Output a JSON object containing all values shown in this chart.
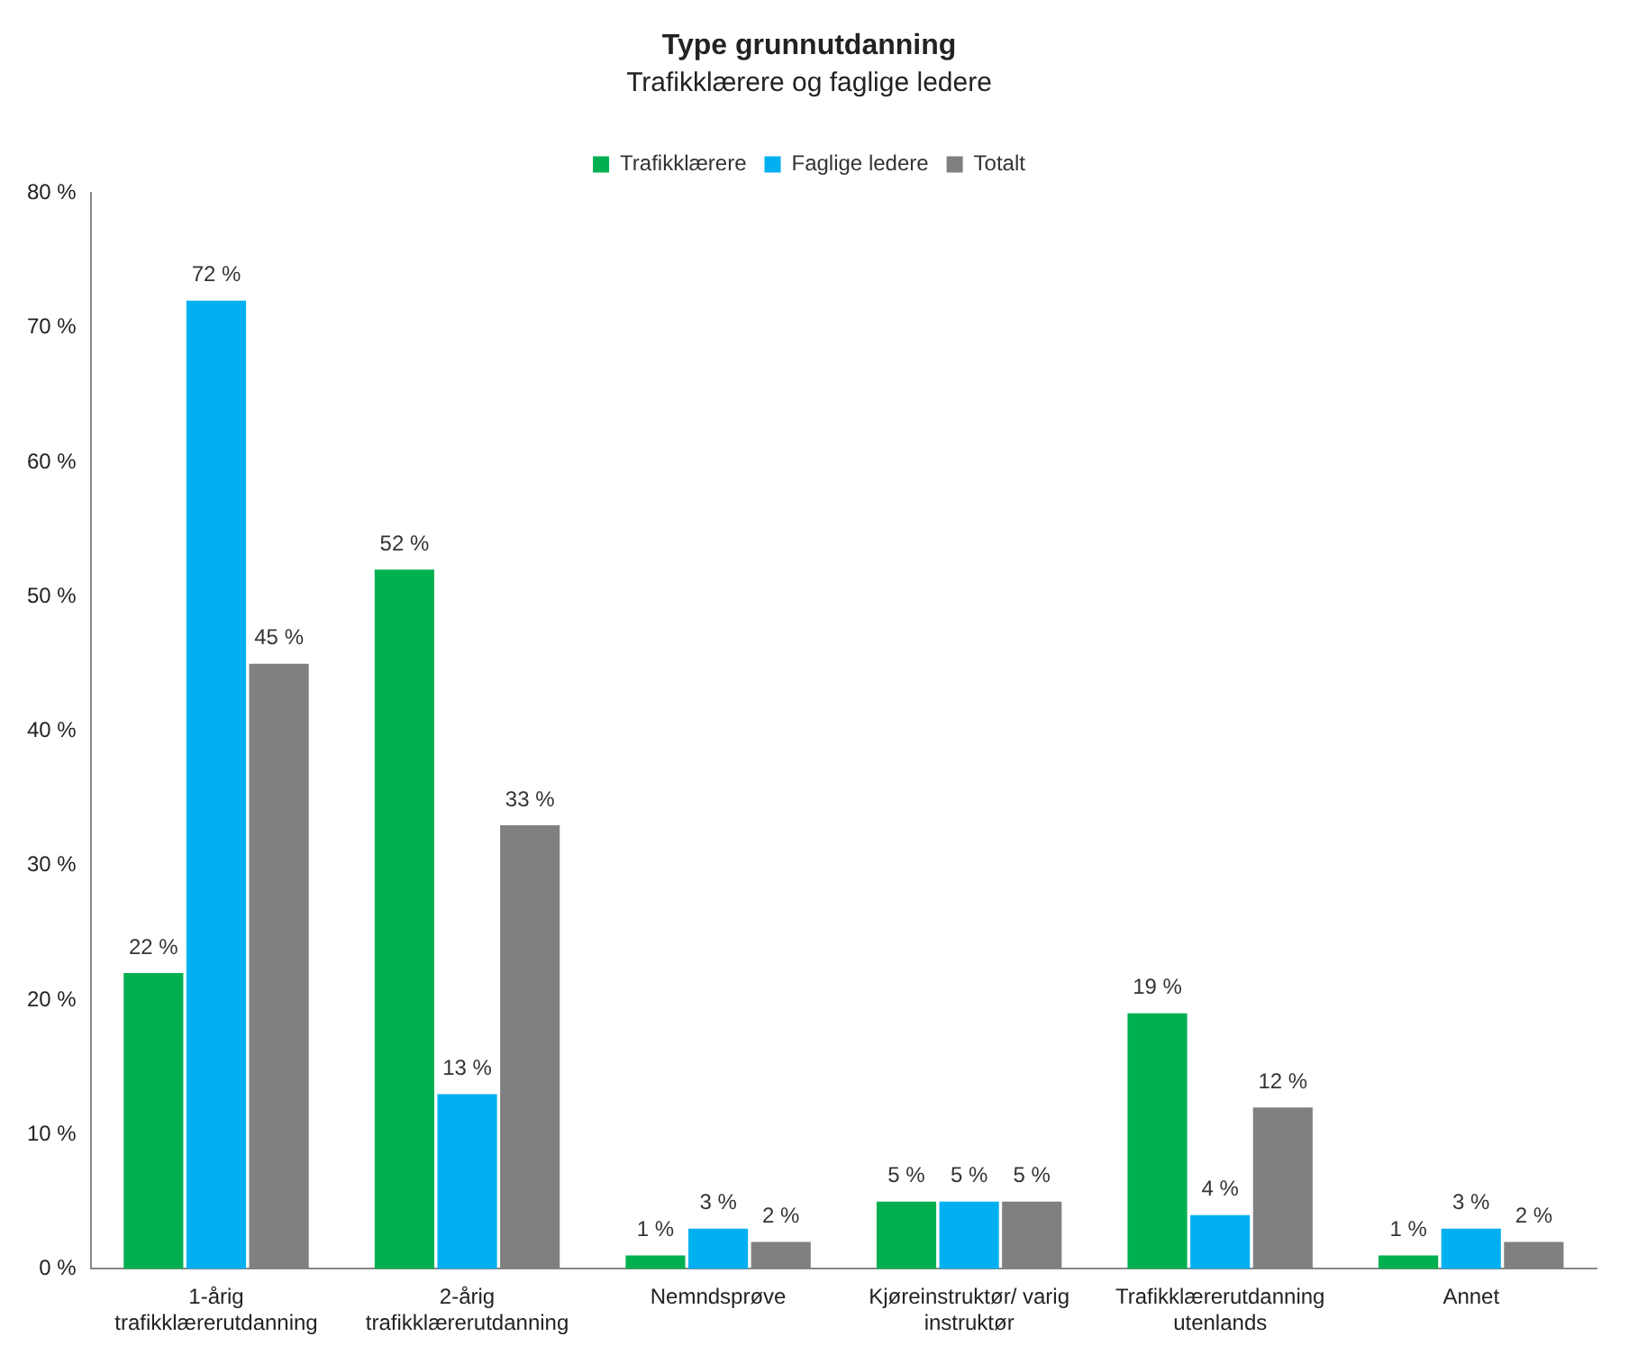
{
  "chart_data": {
    "type": "bar",
    "title": "Type grunnutdanning",
    "subtitle": "Trafikklærere og faglige ledere",
    "categories": [
      "1-årig trafikklærerutdanning",
      "2-årig trafikklærerutdanning",
      "Nemndsprøve",
      "Kjøreinstruktør/ varig instruktør",
      "Trafikklærerutdanning utenlands",
      "Annet"
    ],
    "series": [
      {
        "name": "Trafikklærere",
        "color": "#00b050",
        "values": [
          22,
          52,
          1,
          5,
          19,
          1
        ],
        "value_labels": [
          "22 %",
          "52 %",
          "1 %",
          "5 %",
          "19 %",
          "1 %"
        ]
      },
      {
        "name": "Faglige ledere",
        "color": "#00b0f0",
        "values": [
          72,
          13,
          3,
          5,
          4,
          3
        ],
        "value_labels": [
          "72 %",
          "13 %",
          "3 %",
          "5 %",
          "4 %",
          "3 %"
        ]
      },
      {
        "name": "Totalt",
        "color": "#808080",
        "values": [
          45,
          33,
          2,
          5,
          12,
          2
        ],
        "value_labels": [
          "45 %",
          "33 %",
          "2 %",
          "5 %",
          "12 %",
          "2 %"
        ]
      }
    ],
    "ylim": [
      0,
      80
    ],
    "yticks": [
      {
        "value": 0,
        "label": "0 %"
      },
      {
        "value": 10,
        "label": "10 %"
      },
      {
        "value": 20,
        "label": "20 %"
      },
      {
        "value": 30,
        "label": "30 %"
      },
      {
        "value": 40,
        "label": "40 %"
      },
      {
        "value": 50,
        "label": "50 %"
      },
      {
        "value": 60,
        "label": "60 %"
      },
      {
        "value": 70,
        "label": "70 %"
      },
      {
        "value": 80,
        "label": "80 %"
      }
    ],
    "grid": false,
    "legend": "top"
  }
}
